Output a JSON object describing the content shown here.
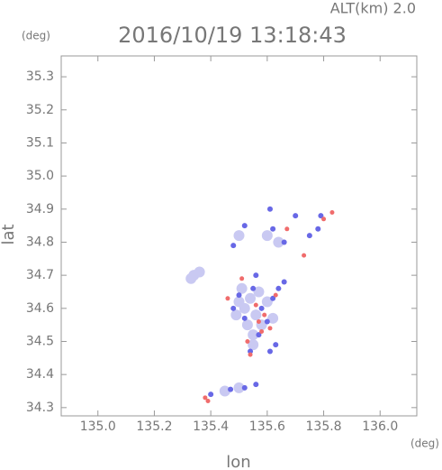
{
  "chart_data": {
    "type": "scatter",
    "title": "2016/10/19 13:18:43",
    "subtitle": "ALT(km) 2.0",
    "x_label": "lon",
    "y_label": "lat",
    "x_unit": "(deg)",
    "y_unit": "(deg)",
    "xlim": [
      134.87,
      136.13
    ],
    "ylim": [
      34.275,
      35.363
    ],
    "xticks": [
      {
        "value": 135,
        "label": "135.0"
      },
      135.2,
      135.4,
      135.6,
      135.8,
      {
        "value": 136,
        "label": "136.0"
      }
    ],
    "yticks": [
      34.3,
      34.4,
      34.5,
      34.6,
      34.7,
      34.8,
      34.9,
      {
        "value": 35,
        "label": "35.0"
      },
      35.1,
      35.2,
      35.3
    ],
    "series": [
      {
        "color": "#c9c9f2",
        "x": [
          135.34,
          135.36,
          135.33,
          135.5,
          135.52,
          135.54,
          135.56,
          135.58,
          135.53,
          135.55,
          135.57,
          135.6,
          135.51,
          135.49,
          135.62,
          135.55,
          135.6,
          135.64,
          135.5,
          135.45,
          135.5
        ],
        "values": [
          34.7,
          34.71,
          34.69,
          34.62,
          34.6,
          34.63,
          34.58,
          34.55,
          34.55,
          34.52,
          34.65,
          34.62,
          34.66,
          34.58,
          34.57,
          34.49,
          34.82,
          34.8,
          34.82,
          34.35,
          34.36
        ]
      },
      {
        "color": "#6868e6",
        "x": [
          135.5,
          135.55,
          135.58,
          135.62,
          135.64,
          135.52,
          135.57,
          135.63,
          135.61,
          135.54,
          135.66,
          135.48,
          135.6,
          135.56,
          135.62,
          135.66,
          135.7,
          135.75,
          135.78,
          135.52,
          135.48,
          135.4,
          135.47,
          135.52,
          135.56,
          135.61,
          135.79
        ],
        "values": [
          34.64,
          34.66,
          34.6,
          34.63,
          34.66,
          34.57,
          34.52,
          34.49,
          34.47,
          34.47,
          34.68,
          34.6,
          34.56,
          34.7,
          34.84,
          34.8,
          34.88,
          34.82,
          34.84,
          34.85,
          34.79,
          34.34,
          34.355,
          34.36,
          34.37,
          34.9,
          34.88
        ]
      },
      {
        "color": "#f06c6c",
        "x": [
          135.51,
          135.56,
          135.59,
          135.61,
          135.53,
          135.57,
          135.63,
          135.58,
          135.67,
          135.73,
          135.83,
          135.8,
          135.38,
          135.39,
          135.54,
          135.46
        ],
        "values": [
          34.69,
          34.61,
          34.58,
          34.54,
          34.5,
          34.56,
          34.64,
          34.53,
          34.84,
          34.76,
          34.89,
          34.87,
          34.33,
          34.32,
          34.46,
          34.63
        ]
      }
    ]
  }
}
